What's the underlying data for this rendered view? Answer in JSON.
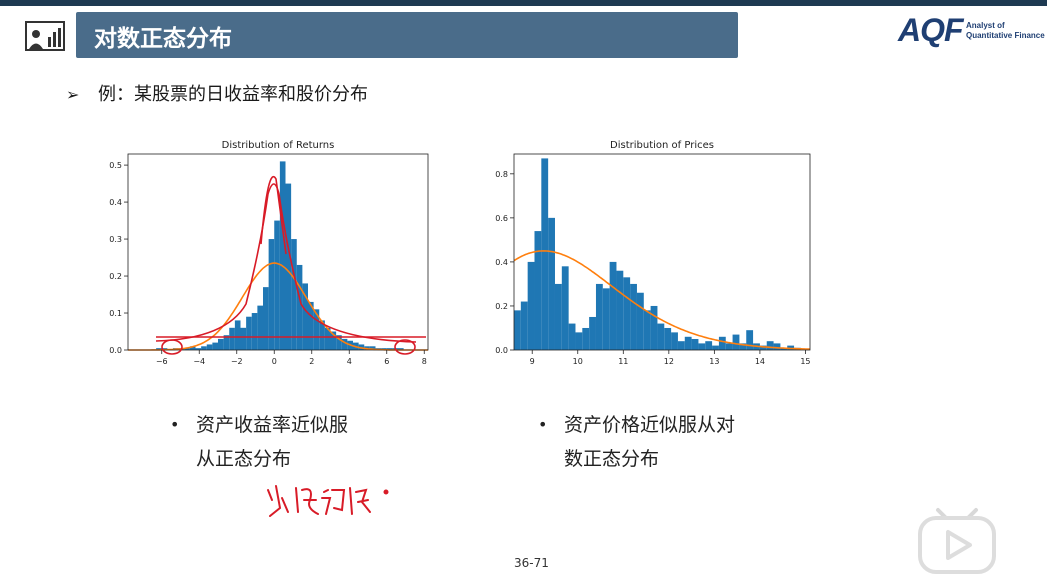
{
  "header": {
    "title": "对数正态分布",
    "icon": "presentation-board-icon",
    "logo_mark": "AQF",
    "logo_sub_line1": "Analyst of",
    "logo_sub_line2": "Quantitative Finance"
  },
  "intro": {
    "arrow": "➢",
    "text": "例：某股票的日收益率和股价分布"
  },
  "bullets": {
    "returns_line1": "资产收益率近似服",
    "returns_line2": "从正态分布",
    "prices_line1": "资产价格近似服从对",
    "prices_line2": "数正态分布",
    "dot": "•"
  },
  "page_number": "36-71",
  "colors": {
    "title_bar": "#4a6c8a",
    "hist": "#1f77b4",
    "fit": "#ff7f0e",
    "annotation": "#d81b27"
  },
  "chart_data": [
    {
      "type": "bar",
      "title": "Distribution of Returns",
      "xlabel": "",
      "ylabel": "",
      "xlim": [
        -7.8,
        8.2
      ],
      "ylim": [
        0,
        0.53
      ],
      "xticks": [
        -6,
        -4,
        -2,
        0,
        2,
        4,
        6,
        8
      ],
      "xtick_labels": [
        "−6",
        "−4",
        "−2",
        "0",
        "2",
        "4",
        "6",
        "8"
      ],
      "yticks": [
        0.0,
        0.1,
        0.2,
        0.3,
        0.4,
        0.5
      ],
      "ytick_labels": [
        "0.0",
        "0.1",
        "0.2",
        "0.3",
        "0.4",
        "0.5"
      ],
      "bin_start": -7.5,
      "bin_width": 0.3,
      "values": [
        0,
        0,
        0,
        0,
        0.005,
        0.005,
        0,
        0.005,
        0.005,
        0.005,
        0.01,
        0.005,
        0.01,
        0.015,
        0.02,
        0.03,
        0.04,
        0.06,
        0.08,
        0.06,
        0.09,
        0.1,
        0.12,
        0.17,
        0.3,
        0.35,
        0.51,
        0.45,
        0.3,
        0.23,
        0.18,
        0.13,
        0.11,
        0.08,
        0.06,
        0.05,
        0.04,
        0.03,
        0.025,
        0.02,
        0.015,
        0.01,
        0.01,
        0.005,
        0.005,
        0.005,
        0.005,
        0.005,
        0,
        0,
        0,
        0,
        0
      ],
      "fit_curve": {
        "type": "normal",
        "mean": 0,
        "std": 1.7,
        "peak": 0.235
      }
    },
    {
      "type": "bar",
      "title": "Distribution of Prices",
      "xlabel": "",
      "ylabel": "",
      "xlim": [
        8.6,
        15.1
      ],
      "ylim": [
        0,
        0.89
      ],
      "xticks": [
        9,
        10,
        11,
        12,
        13,
        14,
        15
      ],
      "xtick_labels": [
        "9",
        "10",
        "11",
        "12",
        "13",
        "14",
        "15"
      ],
      "yticks": [
        0.0,
        0.2,
        0.4,
        0.6,
        0.8
      ],
      "ytick_labels": [
        "0.0",
        "0.2",
        "0.4",
        "0.6",
        "0.8"
      ],
      "bin_start": 8.6,
      "bin_width": 0.15,
      "values": [
        0.18,
        0.22,
        0.4,
        0.54,
        0.87,
        0.6,
        0.3,
        0.38,
        0.12,
        0.08,
        0.1,
        0.15,
        0.3,
        0.28,
        0.4,
        0.36,
        0.33,
        0.3,
        0.26,
        0.18,
        0.2,
        0.12,
        0.1,
        0.08,
        0.04,
        0.06,
        0.05,
        0.03,
        0.04,
        0.02,
        0.06,
        0.03,
        0.07,
        0.03,
        0.09,
        0.03,
        0.02,
        0.04,
        0.03,
        0.01,
        0.02,
        0.01
      ],
      "fit_curve": {
        "type": "lognormal",
        "peak_x": 9.25,
        "peak": 0.45
      }
    }
  ]
}
